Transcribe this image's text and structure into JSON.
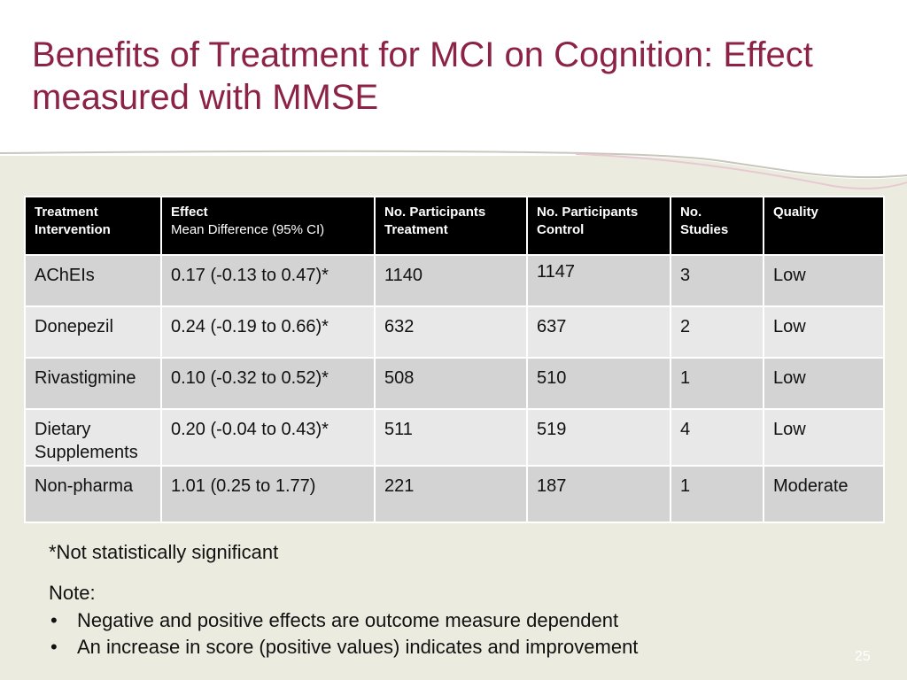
{
  "slide": {
    "title": "Benefits of Treatment for MCI on Cognition: Effect measured with MMSE",
    "page_number": "25"
  },
  "table": {
    "headers": [
      {
        "line1": "Treatment",
        "line2": "Intervention"
      },
      {
        "line1": "Effect",
        "line2": "Mean Difference (95% CI)"
      },
      {
        "line1": "No. Participants",
        "line2": "Treatment"
      },
      {
        "line1": "No. Participants",
        "line2": "Control"
      },
      {
        "line1": "No.",
        "line2": "Studies"
      },
      {
        "line1": "Quality",
        "line2": ""
      }
    ],
    "rows": [
      {
        "intervention": "AChEIs",
        "effect": "0.17  (-0.13 to 0.47)*",
        "treatment": "1140",
        "control": "1147",
        "studies": "3",
        "quality": "Low"
      },
      {
        "intervention": "Donepezil",
        "effect": "0.24 (-0.19 to 0.66)*",
        "treatment": "632",
        "control": "637",
        "studies": "2",
        "quality": "Low"
      },
      {
        "intervention": "Rivastigmine",
        "effect": "0.10 (-0.32 to 0.52)*",
        "treatment": "508",
        "control": "510",
        "studies": "1",
        "quality": "Low"
      },
      {
        "intervention": "Dietary Supplements",
        "effect": "0.20  (-0.04 to 0.43)*",
        "treatment": "511",
        "control": "519",
        "studies": "4",
        "quality": "Low"
      },
      {
        "intervention": "Non-pharma",
        "effect": "1.01 (0.25 to 1.77)",
        "treatment": "221",
        "control": "187",
        "studies": "1",
        "quality": "Moderate"
      }
    ]
  },
  "footnote": "*Not statistically significant",
  "note": {
    "title": "Note:",
    "bullet": "•",
    "items": [
      "Negative and positive effects are outcome measure dependent",
      "An increase in score (positive values) indicates and improvement"
    ]
  },
  "colors": {
    "title": "#8c2346",
    "background_band": "#ecebdf",
    "header_bg": "#000000",
    "row_dark": "#d3d3d3",
    "row_light": "#e8e8e8"
  }
}
